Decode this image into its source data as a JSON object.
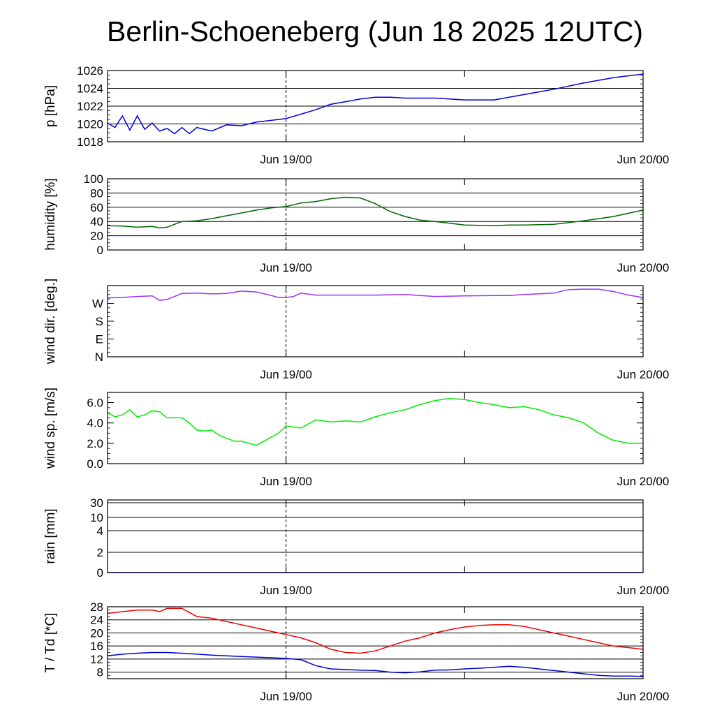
{
  "title": "Berlin-Schoeneberg (Jun 18 2025 12UTC)",
  "chart_data": [
    {
      "type": "line",
      "ylabel": "p [hPa]",
      "x_start": "2025-06-18 12UTC",
      "x_end": "2025-06-20 00UTC",
      "xticks": [
        "Jun 19/00",
        "Jun 20/00"
      ],
      "dashed_marker": "Jun 19/00",
      "ylim": [
        1018,
        1026
      ],
      "yticks": [
        "1018",
        "1020",
        "1022",
        "1024",
        "1026"
      ],
      "grid": true,
      "color": "#0000dd",
      "series": [
        {
          "x": [
            0,
            0.5,
            1,
            1.5,
            2,
            2.5,
            3,
            3.5,
            4,
            4.5,
            5,
            5.5,
            6,
            7,
            8,
            9,
            10,
            11,
            12,
            13,
            14,
            15,
            16,
            17,
            18,
            19,
            20,
            21,
            22,
            24,
            26,
            28,
            30,
            32,
            34,
            36
          ],
          "y": [
            1020.1,
            1019.6,
            1020.9,
            1019.3,
            1020.9,
            1019.4,
            1020.1,
            1019.2,
            1019.5,
            1018.9,
            1019.6,
            1018.9,
            1019.6,
            1019.2,
            1019.9,
            1019.8,
            1020.2,
            1020.4,
            1020.6,
            1021.1,
            1021.6,
            1022.2,
            1022.5,
            1022.8,
            1023.0,
            1023.0,
            1022.9,
            1022.9,
            1022.9,
            1022.7,
            1022.7,
            1023.3,
            1023.9,
            1024.6,
            1025.2,
            1025.6
          ]
        }
      ]
    },
    {
      "type": "line",
      "ylabel": "humidity [%]",
      "xticks": [
        "Jun 19/00",
        "Jun 20/00"
      ],
      "ylim": [
        0,
        100
      ],
      "yticks": [
        "0",
        "20",
        "40",
        "60",
        "80",
        "100"
      ],
      "grid": true,
      "color": "#006600",
      "series": [
        {
          "x": [
            0,
            1,
            2,
            3,
            3.5,
            4,
            5,
            6,
            7,
            8,
            9,
            10,
            11,
            12,
            13,
            14,
            15,
            16,
            17,
            18,
            19,
            20,
            21,
            22,
            24,
            26,
            27,
            28,
            30,
            32,
            34,
            36
          ],
          "y": [
            34,
            33.5,
            32,
            33,
            31,
            32,
            40,
            41,
            44,
            48,
            52,
            56,
            59,
            61,
            66,
            68,
            72,
            74,
            73,
            65,
            54,
            47,
            42,
            40,
            35,
            34,
            35,
            35,
            36,
            41,
            47,
            56
          ]
        }
      ]
    },
    {
      "type": "line",
      "ylabel": "wind dir. [deg.]",
      "xticks": [
        "Jun 19/00",
        "Jun 20/00"
      ],
      "ylim": [
        0,
        360
      ],
      "yticks": [
        "N",
        "E",
        "S",
        "W"
      ],
      "grid": false,
      "color": "#9933ff",
      "series": [
        {
          "x": [
            0,
            1,
            2,
            3,
            3.5,
            4,
            5,
            6,
            7,
            8,
            9,
            10,
            11,
            11.5,
            12,
            12.5,
            13,
            14,
            16,
            18,
            20,
            22,
            24,
            26,
            27,
            28,
            30,
            31,
            32,
            33,
            34,
            35,
            36
          ],
          "y": [
            298,
            300,
            305,
            308,
            285,
            290,
            320,
            322,
            318,
            320,
            332,
            328,
            310,
            300,
            300,
            305,
            322,
            312,
            312,
            312,
            315,
            305,
            308,
            310,
            310,
            315,
            322,
            340,
            342,
            342,
            330,
            312,
            300
          ]
        }
      ]
    },
    {
      "type": "line",
      "ylabel": "wind sp. [m/s]",
      "xticks": [
        "Jun 19/00",
        "Jun 20/00"
      ],
      "ylim": [
        0,
        7
      ],
      "yticks": [
        "0.0",
        "2.0",
        "4.0",
        "6.0"
      ],
      "grid": false,
      "color": "#00ee00",
      "series": [
        {
          "x": [
            0,
            0.5,
            1,
            1.5,
            2,
            2.5,
            3,
            3.5,
            4,
            5,
            5.5,
            6,
            6.5,
            7,
            7.5,
            8,
            8.5,
            9,
            10,
            11,
            11.5,
            12,
            13,
            14,
            15,
            16,
            17,
            18,
            19,
            20,
            21,
            22,
            23,
            24,
            25,
            26,
            27,
            28,
            29,
            30,
            31,
            32,
            33,
            34,
            35,
            36
          ],
          "y": [
            5.0,
            4.6,
            4.8,
            5.3,
            4.6,
            4.8,
            5.2,
            5.1,
            4.5,
            4.5,
            4.0,
            3.3,
            3.2,
            3.3,
            2.8,
            2.5,
            2.2,
            2.2,
            1.8,
            2.6,
            3.0,
            3.7,
            3.5,
            4.3,
            4.1,
            4.2,
            4.1,
            4.6,
            5.0,
            5.3,
            5.8,
            6.2,
            6.4,
            6.3,
            6.0,
            5.8,
            5.5,
            5.6,
            5.3,
            4.8,
            4.5,
            4.0,
            3.0,
            2.3,
            2.0,
            2.0
          ]
        }
      ]
    },
    {
      "type": "line",
      "ylabel": "rain [mm]",
      "xticks": [
        "Jun 19/00",
        "Jun 20/00"
      ],
      "yticks": [
        "0",
        "2",
        "4",
        "10",
        "30"
      ],
      "grid": true,
      "color": "#0000dd",
      "series": [
        {
          "x": [
            0,
            36
          ],
          "y": [
            0,
            0
          ]
        }
      ]
    },
    {
      "type": "line",
      "ylabel": "T / Td [*C]",
      "xticks": [
        "Jun 19/00",
        "Jun 20/00"
      ],
      "ylim": [
        6,
        28
      ],
      "yticks": [
        "8",
        "12",
        "16",
        "20",
        "24",
        "28"
      ],
      "grid": true,
      "series": [
        {
          "color": "#ee0000",
          "x": [
            0,
            1,
            2,
            3,
            3.5,
            4,
            5,
            6,
            7,
            8,
            9,
            10,
            11,
            12,
            13,
            14,
            15,
            16,
            17,
            18,
            19,
            20,
            21,
            22,
            23,
            24,
            25,
            26,
            27,
            28,
            29,
            30,
            31,
            32,
            33,
            34,
            35,
            36
          ],
          "y": [
            26,
            26.5,
            27,
            27,
            26.5,
            27.5,
            27.5,
            25,
            24.5,
            23.5,
            22.5,
            21.5,
            20.5,
            19.5,
            18.5,
            17,
            15,
            14,
            13.8,
            14.5,
            16,
            17.5,
            18.5,
            20,
            21,
            21.8,
            22.3,
            22.5,
            22.5,
            22,
            21,
            20,
            19,
            18,
            17,
            16,
            15.5,
            15
          ]
        },
        {
          "color": "#0000dd",
          "x": [
            0,
            1,
            2,
            3,
            4,
            5,
            6,
            7,
            8,
            9,
            10,
            11,
            12,
            13,
            14,
            15,
            16,
            17,
            18,
            19,
            20,
            21,
            22,
            23,
            24,
            25,
            26,
            27,
            28,
            29,
            30,
            31,
            32,
            33,
            34,
            35,
            36
          ],
          "y": [
            13,
            13.5,
            13.8,
            14,
            14,
            13.8,
            13.5,
            13.2,
            13,
            12.8,
            12.6,
            12.4,
            12.2,
            11.8,
            10,
            9,
            8.8,
            8.6,
            8.5,
            8,
            7.8,
            8.1,
            8.6,
            8.7,
            9,
            9.2,
            9.5,
            9.8,
            9.5,
            9,
            8.5,
            8,
            7.5,
            7,
            6.8,
            6.8,
            6.7
          ]
        }
      ]
    }
  ]
}
